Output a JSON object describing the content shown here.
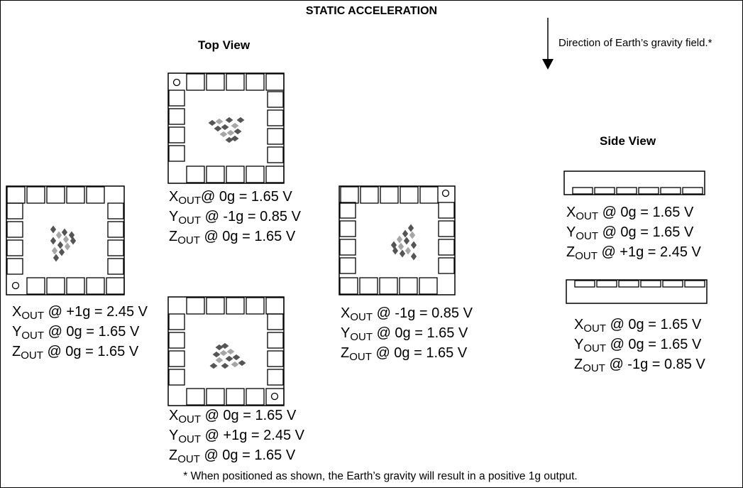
{
  "title": "STATIC ACCELERATION",
  "labels": {
    "top_view": "Top View",
    "side_view": "Side View",
    "gravity_note": "Direction of Earth’s gravity field.*",
    "footnote": "* When positioned as shown, the Earth’s gravity will result in a positive 1g output."
  },
  "colors": {
    "line": "#000000",
    "logo_dark": "#555555",
    "logo_light": "#a6a6a6"
  },
  "icons": {
    "gravity_arrow": "down-arrow-icon",
    "pin1_marker": "circle-icon",
    "logo": "chevron-logo"
  },
  "positions": {
    "top": {
      "x": {
        "axis": "X",
        "sub": "OUT",
        "sep": "@",
        "value": " 0g = 1.65 V"
      },
      "y": {
        "axis": "Y",
        "sub": "OUT",
        "sep": " @",
        "value": " -1g = 0.85 V"
      },
      "z": {
        "axis": "Z",
        "sub": "OUT",
        "sep": " @",
        "value": " 0g = 1.65 V"
      }
    },
    "left": {
      "x": {
        "axis": "X",
        "sub": "OUT",
        "sep": " @",
        "value": " +1g = 2.45 V"
      },
      "y": {
        "axis": "Y",
        "sub": "OUT",
        "sep": " @",
        "value": " 0g = 1.65 V"
      },
      "z": {
        "axis": "Z",
        "sub": "OUT",
        "sep": " @",
        "value": " 0g = 1.65 V"
      }
    },
    "right": {
      "x": {
        "axis": "X",
        "sub": "OUT",
        "sep": " @",
        "value": " -1g = 0.85 V"
      },
      "y": {
        "axis": "Y",
        "sub": "OUT",
        "sep": " @",
        "value": " 0g = 1.65 V"
      },
      "z": {
        "axis": "Z",
        "sub": "OUT",
        "sep": " @",
        "value": " 0g = 1.65 V"
      }
    },
    "bottom": {
      "x": {
        "axis": "X",
        "sub": "OUT",
        "sep": " @",
        "value": " 0g = 1.65 V"
      },
      "y": {
        "axis": "Y",
        "sub": "OUT",
        "sep": " @",
        "value": " +1g = 2.45 V"
      },
      "z": {
        "axis": "Z",
        "sub": "OUT",
        "sep": " @",
        "value": " 0g = 1.65 V"
      }
    },
    "side_up": {
      "x": {
        "axis": "X",
        "sub": "OUT",
        "sep": " @",
        "value": " 0g = 1.65 V"
      },
      "y": {
        "axis": "Y",
        "sub": "OUT",
        "sep": " @",
        "value": " 0g = 1.65 V"
      },
      "z": {
        "axis": "Z",
        "sub": "OUT",
        "sep": " @",
        "value": " +1g = 2.45 V"
      }
    },
    "side_down": {
      "x": {
        "axis": "X",
        "sub": "OUT",
        "sep": " @",
        "value": " 0g = 1.65 V"
      },
      "y": {
        "axis": "Y",
        "sub": "OUT",
        "sep": " @",
        "value": " 0g = 1.65 V"
      },
      "z": {
        "axis": "Z",
        "sub": "OUT",
        "sep": " @",
        "value": " -1g = 0.85 V"
      }
    }
  }
}
